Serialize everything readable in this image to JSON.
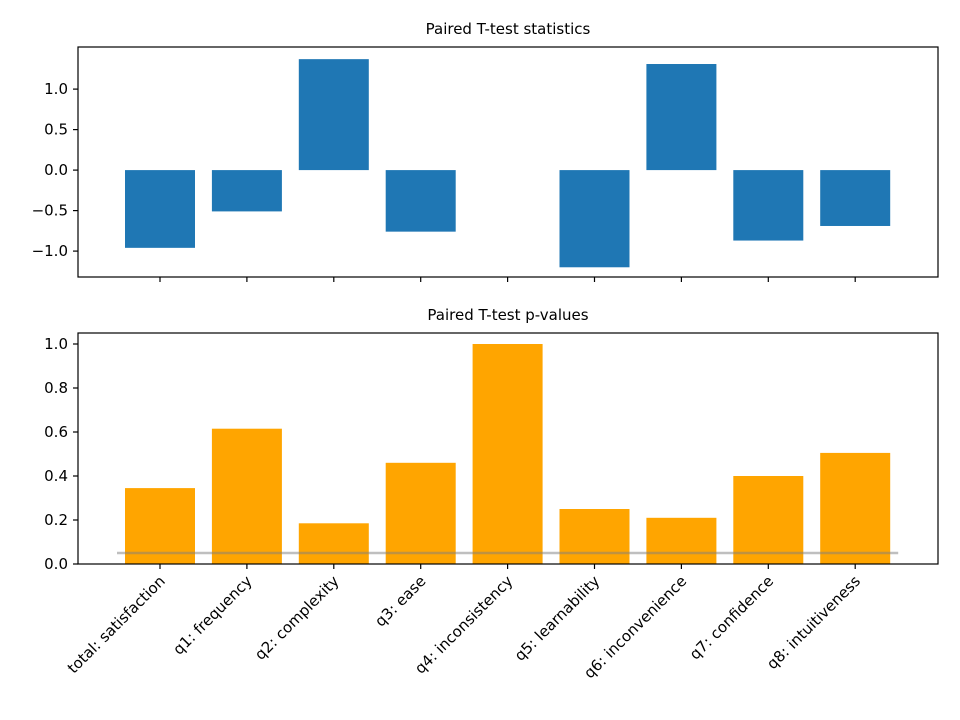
{
  "chart_data": [
    {
      "type": "bar",
      "title": "Paired T-test statistics",
      "categories": [
        "total: satisfaction",
        "q1: frequency",
        "q2: complexity",
        "q3: ease",
        "q4: inconsistency",
        "q5: learnability",
        "q6: inconvenience",
        "q7: confidence",
        "q8: intuitiveness"
      ],
      "values": [
        -0.96,
        -0.51,
        1.37,
        -0.76,
        0.0,
        -1.2,
        1.31,
        -0.87,
        -0.69
      ],
      "ylim": [
        -1.32,
        1.52
      ],
      "yticks": [
        -1.0,
        -0.5,
        0.0,
        0.5,
        1.0
      ],
      "ytick_labels": [
        "−1.0",
        "−0.5",
        "0.0",
        "0.5",
        "1.0"
      ],
      "color": "#1f77b4",
      "show_xtick_labels": false
    },
    {
      "type": "bar",
      "title": "Paired T-test p-values",
      "categories": [
        "total: satisfaction",
        "q1: frequency",
        "q2: complexity",
        "q3: ease",
        "q4: inconsistency",
        "q5: learnability",
        "q6: inconvenience",
        "q7: confidence",
        "q8: intuitiveness"
      ],
      "values": [
        0.345,
        0.615,
        0.185,
        0.46,
        1.0,
        0.25,
        0.21,
        0.4,
        0.505
      ],
      "ylim": [
        0.0,
        1.05
      ],
      "yticks": [
        0.0,
        0.2,
        0.4,
        0.6,
        0.8,
        1.0
      ],
      "ytick_labels": [
        "0.0",
        "0.2",
        "0.4",
        "0.6",
        "0.8",
        "1.0"
      ],
      "color": "#ffa500",
      "reference_line": {
        "y": 0.05,
        "color": "#808080"
      },
      "show_xtick_labels": true,
      "xtick_rotation": 45
    }
  ]
}
